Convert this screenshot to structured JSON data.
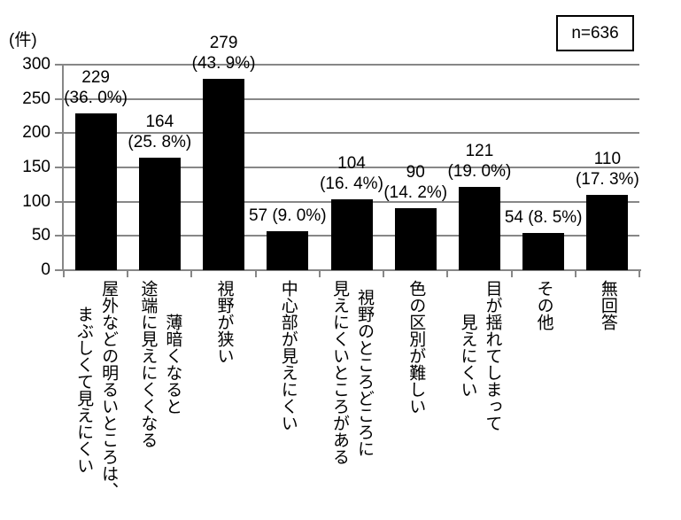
{
  "chart_data": {
    "type": "bar",
    "title": "",
    "y_unit": "(件)",
    "n_label": "n=636",
    "ylim": [
      0,
      300
    ],
    "yticks": [
      300,
      250,
      200,
      150,
      100,
      50,
      0
    ],
    "grid": true,
    "legend_position": "none",
    "bar_color": "#000000",
    "axis_color": "#878787",
    "categories": [
      "屋外などの明るいところは、\nまぶしくて見えにくい",
      "薄暗くなると\n途端に見えにくくなる",
      "視野が狭い",
      "中心部が見えにくい",
      "視野のところどころに\n見えにくいところがある",
      "色の区別が難しい",
      "目が揺れてしまって\n見えにくい",
      "その他",
      "無回答"
    ],
    "values": [
      229,
      164,
      279,
      57,
      104,
      90,
      121,
      54,
      110
    ],
    "percentages": [
      36.0,
      25.8,
      43.9,
      9.0,
      16.4,
      14.2,
      19.0,
      8.5,
      17.3
    ],
    "value_labels": [
      "229\n(36. 0%)",
      "164\n(25. 8%)",
      "279\n(43. 9%)",
      "57 (9. 0%)",
      "104\n(16. 4%)",
      "90\n(14. 2%)",
      "121\n(19. 0%)",
      "54 (8. 5%)",
      "110\n(17. 3%)"
    ],
    "xlabel": "",
    "ylabel": ""
  }
}
